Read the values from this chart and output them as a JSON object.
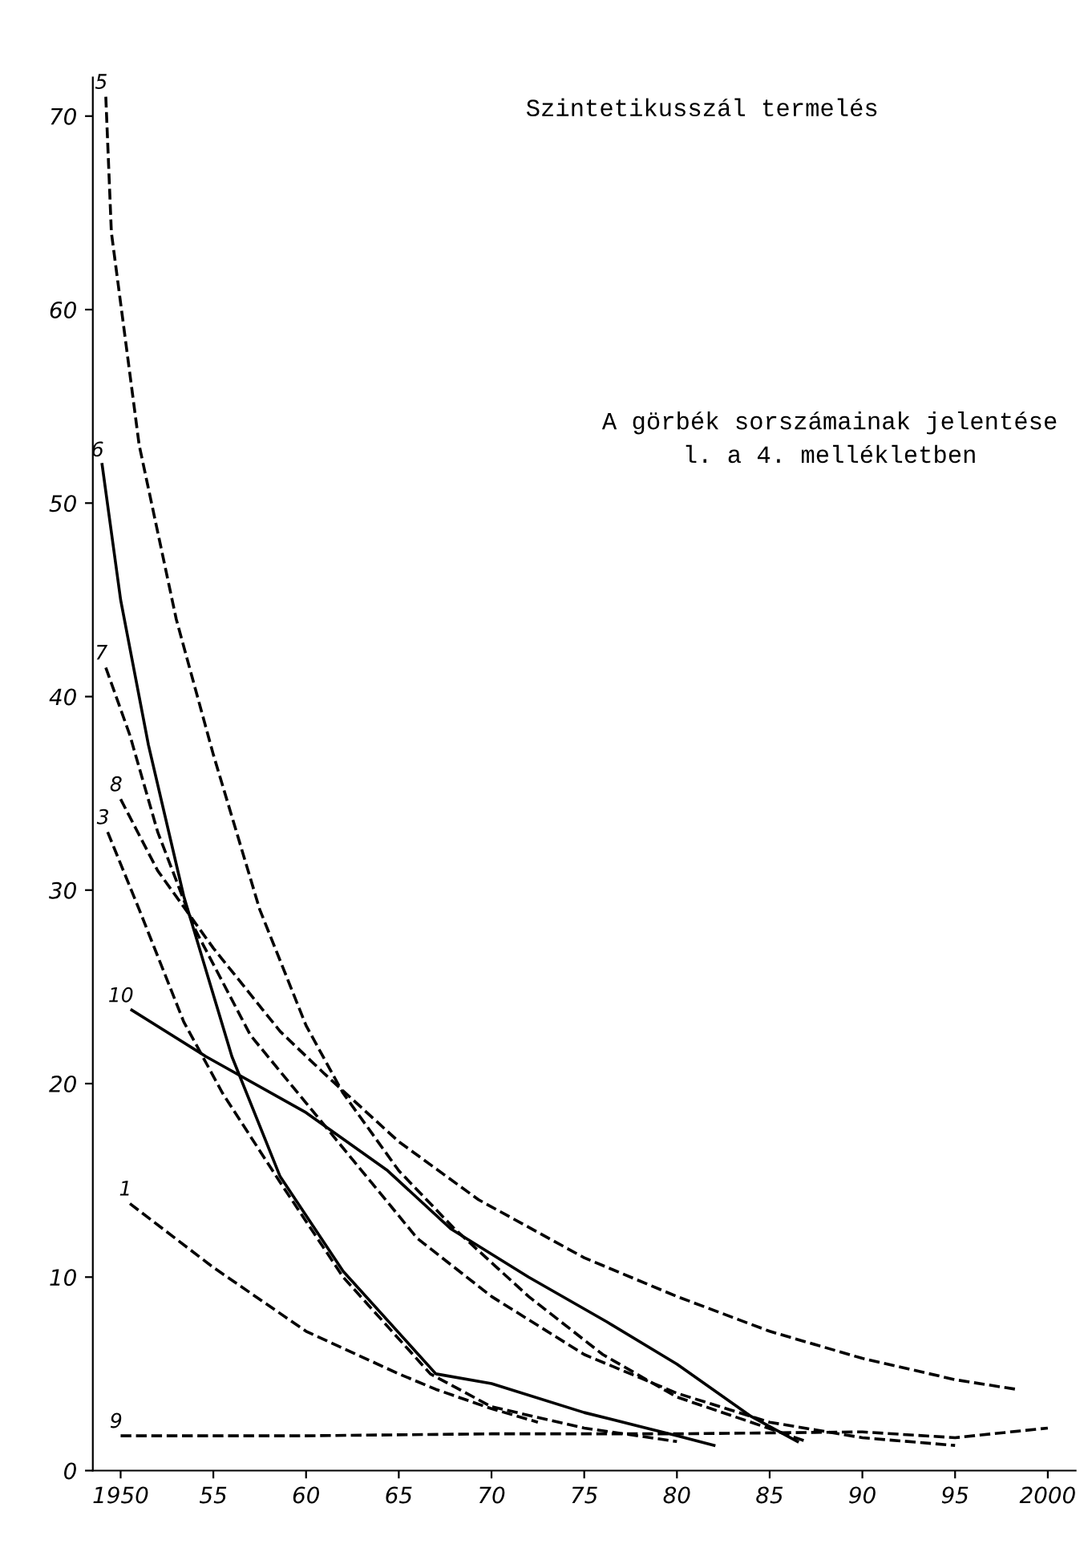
{
  "chart_data": {
    "type": "line",
    "title": "Szintetikusszál termelés",
    "subtitle": "A görbék sorszámainak jelentése\nl. a 4. mellékletben",
    "xlim": [
      1948.5,
      2001.5
    ],
    "ylim": [
      0,
      72
    ],
    "xticks": [
      {
        "value": 1950,
        "label": "1950"
      },
      {
        "value": 1955,
        "label": "55"
      },
      {
        "value": 1960,
        "label": "60"
      },
      {
        "value": 1965,
        "label": "65"
      },
      {
        "value": 1970,
        "label": "70"
      },
      {
        "value": 1975,
        "label": "75"
      },
      {
        "value": 1980,
        "label": "80"
      },
      {
        "value": 1985,
        "label": "85"
      },
      {
        "value": 1990,
        "label": "90"
      },
      {
        "value": 1995,
        "label": "95"
      },
      {
        "value": 2000,
        "label": "2000"
      }
    ],
    "yticks": [
      0,
      10,
      20,
      30,
      40,
      50,
      60,
      70
    ],
    "grid": false,
    "legend": false,
    "marker": "none",
    "series": [
      {
        "name": "5",
        "color": "#000000",
        "line_style": "dashed",
        "x": [
          1949.2,
          1949.5,
          1951,
          1953,
          1955,
          1957.5,
          1960,
          1962,
          1965,
          1968,
          1972,
          1976,
          1980,
          1984,
          1987
        ],
        "values": [
          71,
          64,
          53,
          44,
          37,
          29,
          23,
          19.5,
          15.5,
          12.5,
          9,
          6,
          3.8,
          2.5,
          1.5
        ]
      },
      {
        "name": "6",
        "color": "#000000",
        "line_style": "solid",
        "x": [
          1949,
          1950,
          1951.5,
          1953.4,
          1956,
          1958.6,
          1962,
          1967,
          1970,
          1975,
          1980,
          1982
        ],
        "values": [
          52,
          45,
          37.5,
          29.7,
          21.4,
          15.2,
          10.3,
          5,
          4.5,
          3,
          1.8,
          1.3
        ]
      },
      {
        "name": "7",
        "color": "#000000",
        "line_style": "dashed",
        "x": [
          1949.2,
          1950.5,
          1952,
          1954,
          1957,
          1960,
          1963,
          1966,
          1970,
          1975,
          1980,
          1985,
          1990,
          1995
        ],
        "values": [
          41.5,
          38,
          33,
          28,
          22.5,
          19,
          15.5,
          12,
          9,
          6,
          4,
          2.5,
          1.7,
          1.3
        ]
      },
      {
        "name": "8",
        "color": "#000000",
        "line_style": "dashed",
        "x": [
          1950,
          1952,
          1955,
          1958.6,
          1961,
          1965,
          1969.3,
          1975,
          1980,
          1985,
          1990,
          1995,
          1998.3
        ],
        "values": [
          34.7,
          31,
          27,
          22.7,
          20.5,
          17,
          14,
          11,
          9,
          7.2,
          5.8,
          4.7,
          4.2
        ]
      },
      {
        "name": "3",
        "color": "#000000",
        "line_style": "dashed",
        "x": [
          1949.3,
          1951,
          1953.4,
          1955.5,
          1958.6,
          1962,
          1966.7,
          1970,
          1975,
          1980
        ],
        "values": [
          33,
          29,
          23.2,
          19.5,
          14.9,
          10,
          5,
          3.3,
          2.2,
          1.5
        ]
      },
      {
        "name": "10",
        "color": "#000000",
        "line_style": "solid",
        "x": [
          1950.6,
          1954.6,
          1960,
          1964.4,
          1967.8,
          1972,
          1976.2,
          1980,
          1984,
          1986.5
        ],
        "values": [
          23.8,
          21.4,
          18.5,
          15.5,
          12.5,
          10,
          7.7,
          5.5,
          2.8,
          1.5
        ]
      },
      {
        "name": "1",
        "color": "#000000",
        "line_style": "dashed",
        "x": [
          1950.5,
          1955,
          1960,
          1965,
          1967,
          1970,
          1972.5
        ],
        "values": [
          13.8,
          10.5,
          7.2,
          5,
          4.2,
          3.2,
          2.5
        ]
      },
      {
        "name": "9",
        "color": "#000000",
        "line_style": "dashed",
        "x": [
          1950,
          1960,
          1970,
          1980,
          1990,
          1995,
          2000
        ],
        "values": [
          1.8,
          1.8,
          1.9,
          1.9,
          2,
          1.7,
          2.2
        ]
      }
    ]
  }
}
